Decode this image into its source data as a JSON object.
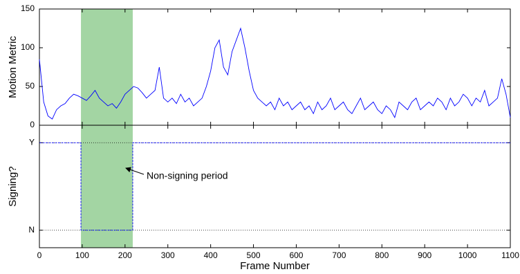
{
  "chart_data": [
    {
      "type": "line",
      "ylabel": "Motion Metric",
      "xlim": [
        0,
        1100
      ],
      "xticks": [
        0,
        100,
        200,
        300,
        400,
        500,
        600,
        700,
        800,
        900,
        1000,
        1100
      ],
      "ylim": [
        0,
        150
      ],
      "yticks": [
        0,
        50,
        100,
        150
      ],
      "span": {
        "x": [
          97,
          218
        ],
        "color": "#a3d5a3"
      },
      "x": [
        0,
        10,
        20,
        30,
        40,
        50,
        60,
        70,
        80,
        90,
        100,
        110,
        120,
        130,
        140,
        150,
        160,
        170,
        180,
        190,
        200,
        210,
        220,
        230,
        240,
        250,
        260,
        270,
        280,
        290,
        300,
        310,
        320,
        330,
        340,
        350,
        360,
        370,
        380,
        390,
        400,
        410,
        420,
        430,
        440,
        450,
        460,
        470,
        480,
        490,
        500,
        510,
        520,
        530,
        540,
        550,
        560,
        570,
        580,
        590,
        600,
        610,
        620,
        630,
        640,
        650,
        660,
        670,
        680,
        690,
        700,
        710,
        720,
        730,
        740,
        750,
        760,
        770,
        780,
        790,
        800,
        810,
        820,
        830,
        840,
        850,
        860,
        870,
        880,
        890,
        900,
        910,
        920,
        930,
        940,
        950,
        960,
        970,
        980,
        990,
        1000,
        1010,
        1020,
        1030,
        1040,
        1050,
        1060,
        1070,
        1080,
        1090,
        1100
      ],
      "series": [
        {
          "color": "#0000ff",
          "values": [
            85,
            30,
            12,
            8,
            20,
            25,
            28,
            35,
            40,
            38,
            35,
            32,
            38,
            45,
            35,
            30,
            25,
            28,
            22,
            30,
            40,
            45,
            50,
            48,
            42,
            35,
            40,
            45,
            75,
            35,
            30,
            35,
            28,
            40,
            30,
            35,
            25,
            30,
            35,
            50,
            70,
            100,
            110,
            75,
            65,
            95,
            110,
            125,
            100,
            70,
            45,
            35,
            30,
            25,
            30,
            20,
            35,
            25,
            30,
            20,
            25,
            30,
            20,
            25,
            15,
            30,
            20,
            25,
            35,
            20,
            25,
            30,
            20,
            15,
            25,
            35,
            20,
            25,
            30,
            20,
            15,
            25,
            20,
            10,
            30,
            25,
            20,
            30,
            35,
            20,
            25,
            30,
            25,
            35,
            30,
            20,
            35,
            25,
            30,
            40,
            35,
            25,
            35,
            30,
            45,
            25,
            30,
            35,
            60,
            40,
            10
          ]
        }
      ]
    },
    {
      "type": "line",
      "ylabel": "Signing?",
      "xlabel": "Frame Number",
      "xlim": [
        0,
        1100
      ],
      "xticks": [
        0,
        100,
        200,
        300,
        400,
        500,
        600,
        700,
        800,
        900,
        1000,
        1100
      ],
      "ylim": [
        -0.2,
        1.2
      ],
      "yticks": [
        {
          "value": 0,
          "label": "N"
        },
        {
          "value": 1,
          "label": "Y"
        }
      ],
      "span": {
        "x": [
          97,
          218
        ],
        "color": "#a3d5a3"
      },
      "annotation": "Non-signing period",
      "x": [
        0,
        97,
        97,
        218,
        218,
        1100
      ],
      "series": [
        {
          "color": "#0000ff",
          "values": [
            1,
            1,
            0,
            0,
            1,
            1
          ]
        }
      ]
    }
  ]
}
